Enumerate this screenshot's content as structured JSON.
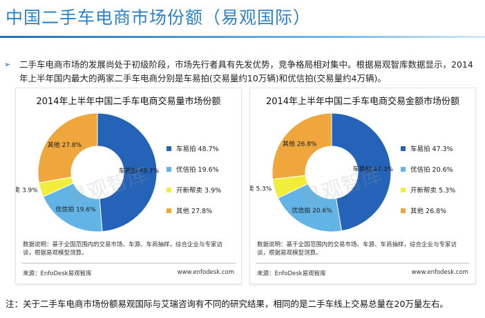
{
  "page": {
    "title": "中国二手车电商市场份额（易观国际）",
    "intro_bullet": "➢",
    "intro_text": "二手车电商市场的发展尚处于初级阶段，市场先行者具有先发优势，竞争格局相对集中。根据易观智库数据显示，2014年上半年国内最大的两家二手车电商分别是车易拍(交易量约10万辆)和优信拍(交易量约4万辆)。",
    "footnote": "注：关于二手车电商市场份额易观国际与艾瑞咨询有不同的研究结果，相同的是二手车线上交易总量在20万量左右。",
    "watermark": "易观智库"
  },
  "colors": {
    "cheyipai": "#2463b8",
    "youxinpai": "#63b4e6",
    "kaixin": "#f2ec3b",
    "other": "#eea63d",
    "title": "#2c82c9"
  },
  "chart_data": [
    {
      "type": "pie",
      "donut": true,
      "title": "2014年上半年中国二手车电商交易量市场份额",
      "slices": [
        {
          "name": "车易拍",
          "value": 48.7,
          "label": "车易拍 48.7%",
          "legend": "车易拍 48.7%"
        },
        {
          "name": "优信拍",
          "value": 19.6,
          "label": "优信拍 19.6%",
          "legend": "优信拍 19.6%"
        },
        {
          "name": "开新帮卖",
          "value": 3.9,
          "label": "开新帮卖 3.9%",
          "legend": "开新帮卖 3.9%"
        },
        {
          "name": "其他",
          "value": 27.8,
          "label": "其他 27.8%",
          "legend": "其他 27.8%"
        }
      ],
      "note": "数据说明：基于全国范围内的交易市场、车源、车商抽样，综合企业与专家访谈，根据易观模型测算。",
      "source": "来源：EnfoDesk易观智库",
      "site": "www.enfodesk.com",
      "legend_position": "right"
    },
    {
      "type": "pie",
      "donut": true,
      "title": "2014年上半年中国二手车电商交易金额市场份额",
      "slices": [
        {
          "name": "车易拍",
          "value": 47.3,
          "label": "车易拍 47.3%",
          "legend": "车易拍 47.3%"
        },
        {
          "name": "优信拍",
          "value": 20.6,
          "label": "优信拍 20.6%",
          "legend": "优信拍 20.6%"
        },
        {
          "name": "开新帮卖",
          "value": 5.3,
          "label": "开新帮卖 5.3%",
          "legend": "开新帮卖 5.3%"
        },
        {
          "name": "其他",
          "value": 26.8,
          "label": "其他 26.8%",
          "legend": "其他 26.8%"
        }
      ],
      "note": "数据说明：基于全国范围内的交易市场、车源、车商抽样，综合企业与专家访谈，根据易观模型测算。",
      "source": "来源：EnfoDesk易观智库",
      "site": "www.enfodesk.com",
      "legend_position": "right"
    }
  ]
}
